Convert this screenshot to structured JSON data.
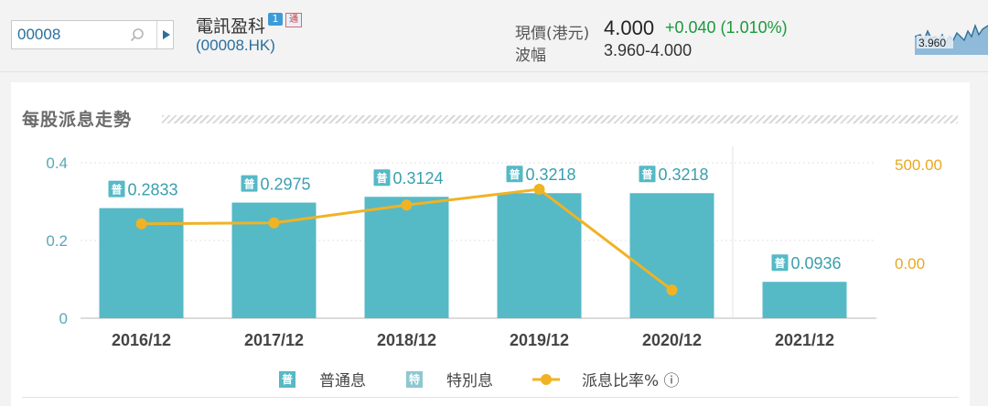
{
  "search": {
    "value": "00008"
  },
  "stock": {
    "name": "電訊盈科",
    "badge_one": "1",
    "badge_two": "通",
    "code": "(00008.HK)"
  },
  "quote": {
    "price_label": "現價(港元)",
    "price": "4.000",
    "change": "+0.040 (1.010%)",
    "range_label": "波幅",
    "range": "3.960-4.000",
    "spark_value": "3.960"
  },
  "section": {
    "title": "每股派息走勢"
  },
  "colors": {
    "bar": "#56b9c6",
    "line": "#f0b323",
    "tick_left": "#5aa7b8",
    "tick_right": "#e9a81f"
  },
  "chart_data": {
    "type": "bar",
    "categories": [
      "2016/12",
      "2017/12",
      "2018/12",
      "2019/12",
      "2020/12",
      "2021/12"
    ],
    "series": [
      {
        "name": "普通息",
        "type": "bar",
        "values": [
          0.2833,
          0.2975,
          0.3124,
          0.3218,
          0.3218,
          0.0936
        ]
      },
      {
        "name": "派息比率%",
        "type": "line",
        "axis": "right",
        "values": [
          200,
          205,
          295,
          375,
          -135,
          null
        ]
      }
    ],
    "bar_labels": [
      "0.2833",
      "0.2975",
      "0.3124",
      "0.3218",
      "0.3218",
      "0.0936"
    ],
    "bar_badge": "普",
    "y_left": {
      "ticks": [
        "0.4",
        "0.2",
        "0"
      ],
      "lim": [
        0,
        0.4
      ]
    },
    "y_right": {
      "ticks": [
        "500.00",
        "0.00"
      ],
      "lim": [
        -150,
        500
      ]
    },
    "legend": [
      {
        "badge": "普",
        "label": "普通息",
        "kind": "bar"
      },
      {
        "badge": "特",
        "label": "特別息",
        "kind": "bar-special"
      },
      {
        "badge": "",
        "label": "派息比率% ⓘ",
        "kind": "line"
      }
    ]
  }
}
